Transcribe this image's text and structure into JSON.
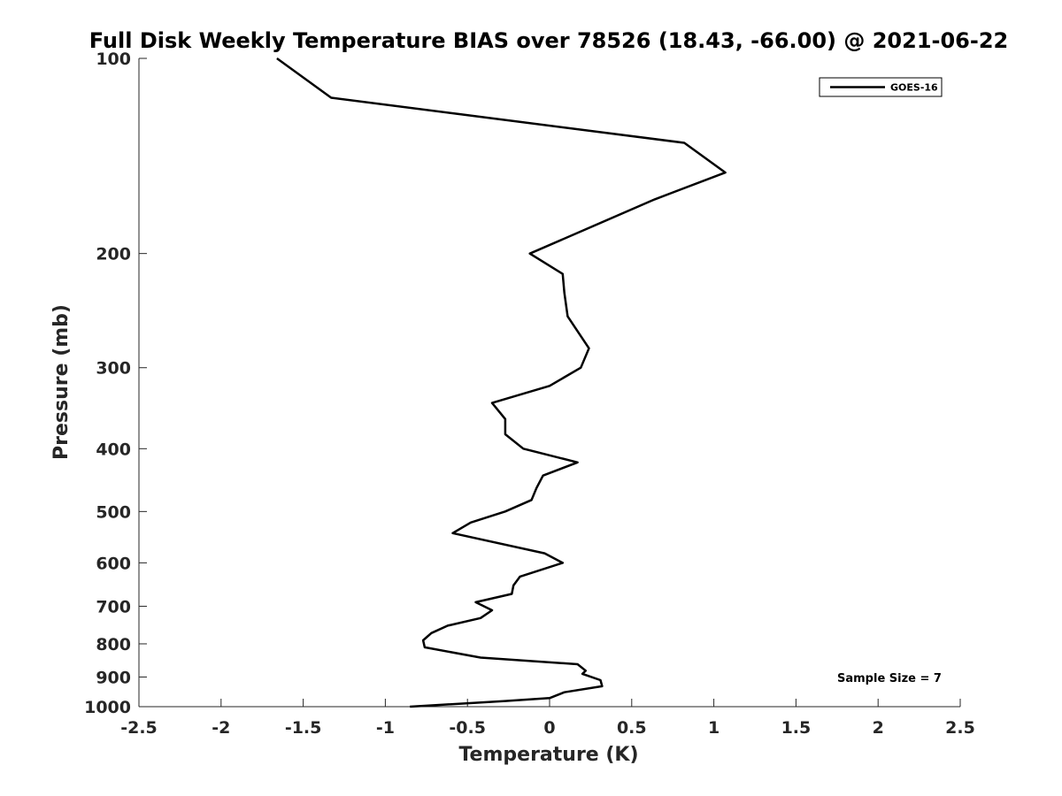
{
  "chart_data": {
    "type": "line",
    "title": "Full Disk Weekly Temperature BIAS over 78526 (18.43, -66.00) @ 2021-06-22",
    "xlabel": "Temperature (K)",
    "ylabel": "Pressure (mb)",
    "xlim": [
      -2.5,
      2.5
    ],
    "ylim": [
      100,
      1000
    ],
    "y_scale": "log",
    "y_reversed": true,
    "x_ticks": [
      "-2.5",
      "-2",
      "-1.5",
      "-1",
      "-0.5",
      "0",
      "0.5",
      "1",
      "1.5",
      "2",
      "2.5"
    ],
    "x_tick_values": [
      -2.5,
      -2,
      -1.5,
      -1,
      -0.5,
      0,
      0.5,
      1,
      1.5,
      2,
      2.5
    ],
    "y_ticks": [
      "100",
      "200",
      "300",
      "400",
      "500",
      "600",
      "700",
      "800",
      "900",
      "1000"
    ],
    "y_tick_values": [
      100,
      200,
      300,
      400,
      500,
      600,
      700,
      800,
      900,
      1000
    ],
    "grid": false,
    "legend": {
      "position": "top-right",
      "entries": [
        "GOES-16"
      ]
    },
    "annotation": "Sample Size = 7",
    "line_color": "#000000",
    "series": [
      {
        "name": "GOES-16",
        "x": [
          -1.66,
          -1.33,
          0.82,
          1.07,
          0.64,
          -0.12,
          0.08,
          0.09,
          0.11,
          0.24,
          0.19,
          0.0,
          -0.35,
          -0.27,
          -0.27,
          -0.16,
          0.17,
          -0.04,
          -0.08,
          -0.11,
          -0.27,
          -0.48,
          -0.59,
          -0.03,
          0.08,
          -0.18,
          -0.22,
          -0.23,
          -0.45,
          -0.35,
          -0.42,
          -0.62,
          -0.72,
          -0.77,
          -0.76,
          -0.42,
          0.17,
          0.22,
          0.2,
          0.31,
          0.32,
          0.09,
          0.0,
          -0.27,
          -0.85
        ],
        "y": [
          100,
          115,
          135,
          150,
          165,
          200,
          215,
          230,
          250,
          280,
          300,
          320,
          340,
          360,
          380,
          400,
          420,
          440,
          460,
          480,
          500,
          520,
          540,
          580,
          600,
          630,
          650,
          670,
          690,
          710,
          730,
          750,
          770,
          790,
          810,
          840,
          860,
          880,
          890,
          910,
          930,
          950,
          970,
          980,
          1000
        ]
      }
    ]
  }
}
